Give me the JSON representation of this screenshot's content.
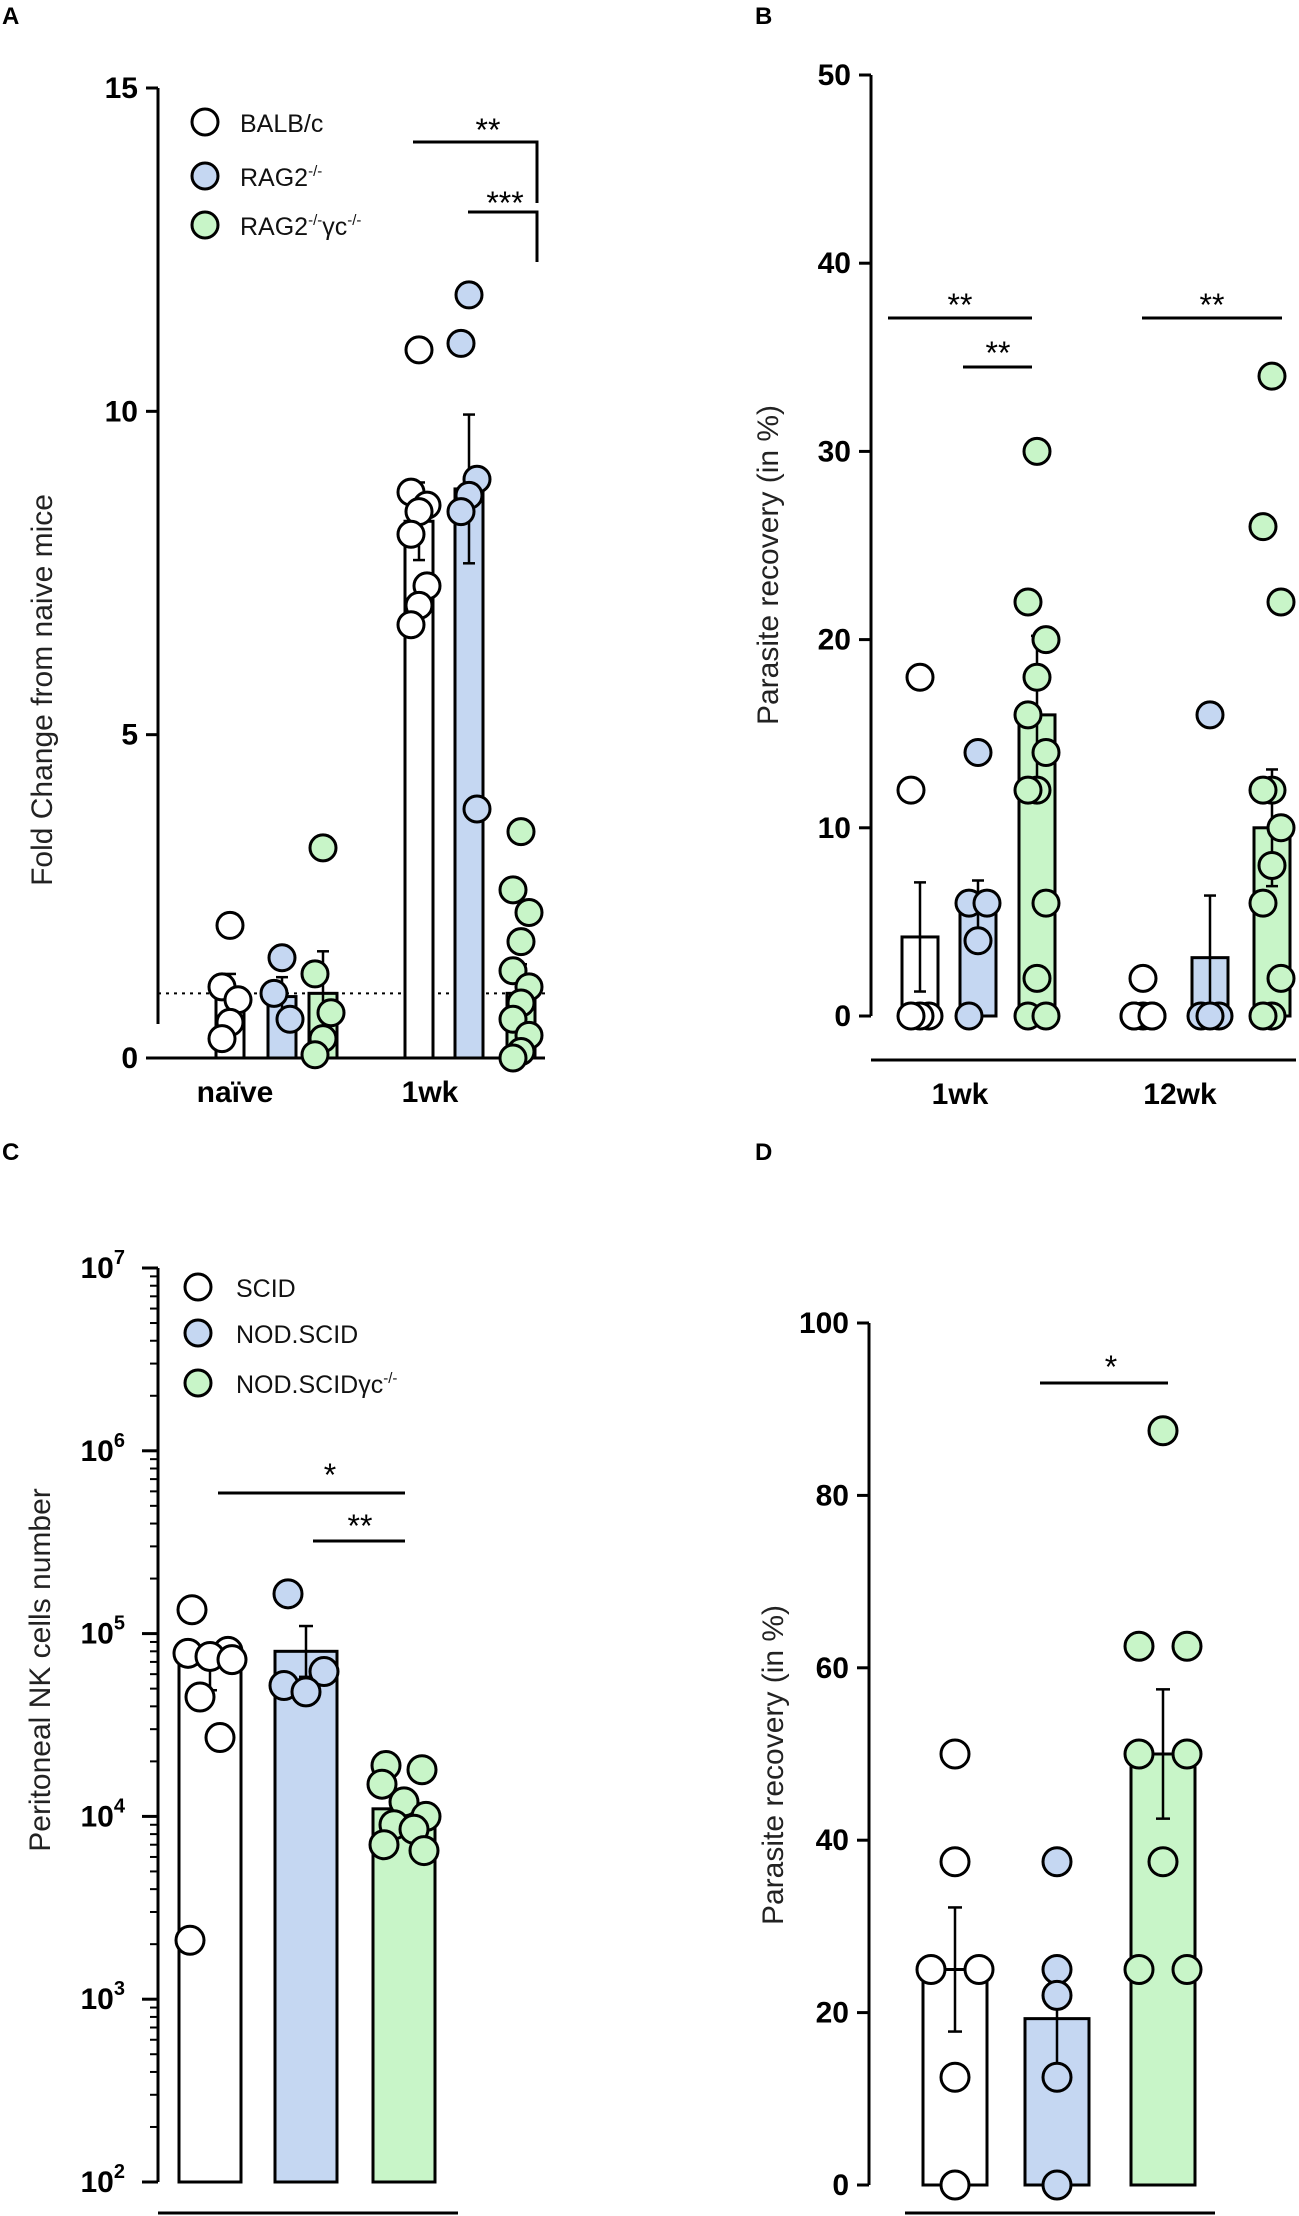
{
  "colors": {
    "BALB/c": "#ffffff",
    "RAG2": "#c5d7f2",
    "RAG2gc": "#c8f5c8",
    "SCID": "#ffffff",
    "NODSCID": "#c5d7f2",
    "NODSCIDgc": "#c8f5c8"
  },
  "chart_data": [
    {
      "panel": "A",
      "type": "bar",
      "ylabel": "Fold Change from naive mice",
      "ylim": [
        0,
        15
      ],
      "yticks": [
        "0",
        "5",
        "10",
        "15"
      ],
      "categories": [
        "naïve",
        "1wk"
      ],
      "legend": [
        {
          "name": "BALB/c",
          "sup": "",
          "name2": "",
          "sup2": ""
        },
        {
          "name": "RAG2",
          "sup": "-/-",
          "name2": "",
          "sup2": ""
        },
        {
          "name": "RAG2",
          "sup": "-/-",
          "name2": "γc",
          "sup2": "-/-"
        }
      ],
      "reference_line": 1,
      "series": [
        {
          "name": "BALB/c",
          "values": [
            1.0,
            8.3
          ],
          "err": [
            0.3,
            0.6
          ],
          "points": [
            [
              2.05,
              1.1,
              0.9,
              0.55,
              0.3
            ],
            [
              10.95,
              8.75,
              8.55,
              8.45,
              8.1,
              7.3,
              7.0,
              6.7
            ]
          ]
        },
        {
          "name": "RAG2-/-",
          "values": [
            0.95,
            8.8
          ],
          "err": [
            0.3,
            1.15
          ],
          "points": [
            [
              1.55,
              1.0,
              0.6
            ],
            [
              11.8,
              11.05,
              8.95,
              8.7,
              8.45,
              3.85
            ]
          ]
        },
        {
          "name": "RAG2-/-γc-/-",
          "values": [
            1.0,
            1.0
          ],
          "err": [
            0.65,
            0.45
          ],
          "points": [
            [
              3.25,
              1.3,
              0.7,
              0.3,
              0.05
            ],
            [
              3.5,
              2.6,
              2.25,
              1.8,
              1.35,
              1.1,
              0.85,
              0.6,
              0.35,
              0.1,
              0.0
            ]
          ]
        }
      ],
      "significance": [
        {
          "label": "**",
          "from": "BALB/c 1wk",
          "to": "RAG2-/-γc-/- 1wk"
        },
        {
          "label": "***",
          "from": "RAG2-/- 1wk",
          "to": "RAG2-/-γc-/- 1wk"
        }
      ]
    },
    {
      "panel": "B",
      "type": "bar",
      "ylabel": "Parasite recovery (in %)",
      "ylim": [
        0,
        50
      ],
      "yticks": [
        "0",
        "10",
        "20",
        "30",
        "40",
        "50"
      ],
      "categories": [
        "1wk",
        "12wk"
      ],
      "series": [
        {
          "name": "BALB/c",
          "values": [
            4.2,
            0.2
          ],
          "err": [
            2.9,
            0.2
          ],
          "points": [
            [
              18,
              12,
              0,
              0,
              0
            ],
            [
              2,
              0,
              0,
              0,
              0,
              0
            ]
          ]
        },
        {
          "name": "RAG2-/-",
          "values": [
            5.8,
            3.1
          ],
          "err": [
            1.4,
            3.3
          ],
          "points": [
            [
              14,
              6,
              6,
              4,
              0
            ],
            [
              16,
              0,
              0,
              0
            ]
          ]
        },
        {
          "name": "RAG2-/-γc-/-",
          "values": [
            16.0,
            10.0
          ],
          "err": [
            4.2,
            3.1
          ],
          "points": [
            [
              30,
              22,
              20,
              18,
              16,
              14,
              12,
              12,
              6,
              2,
              0,
              0
            ],
            [
              34,
              26,
              22,
              12,
              12,
              10,
              8,
              6,
              2,
              0,
              0
            ]
          ]
        }
      ],
      "significance": [
        {
          "label": "**",
          "from": "BALB/c 1wk",
          "to": "RAG2-/-γc-/- 1wk"
        },
        {
          "label": "**",
          "from": "RAG2-/- 1wk",
          "to": "RAG2-/-γc-/- 1wk"
        },
        {
          "label": "**",
          "from": "BALB/c 12wk",
          "to": "RAG2-/-γc-/- 12wk"
        }
      ]
    },
    {
      "panel": "C",
      "type": "bar",
      "yscale": "log",
      "ylabel": "Peritoneal NK cells number",
      "ylim": [
        100,
        10000000
      ],
      "yticks": [
        {
          "base": "10",
          "exp": "2"
        },
        {
          "base": "10",
          "exp": "3"
        },
        {
          "base": "10",
          "exp": "4"
        },
        {
          "base": "10",
          "exp": "5"
        },
        {
          "base": "10",
          "exp": "6"
        },
        {
          "base": "10",
          "exp": "7"
        }
      ],
      "legend": [
        {
          "name": "SCID",
          "sup": ""
        },
        {
          "name": "NOD.SCID",
          "sup": ""
        },
        {
          "name": "NOD.SCIDγc",
          "sup": "-/-"
        }
      ],
      "series": [
        {
          "name": "SCID",
          "value": 68000,
          "err_low": 49000,
          "err_high": 87000,
          "points": [
            135000,
            80000,
            78000,
            75000,
            72000,
            45000,
            27000,
            2100
          ]
        },
        {
          "name": "NOD.SCID",
          "value": 80000,
          "err_low": 58000,
          "err_high": 110000,
          "points": [
            165000,
            62000,
            52000,
            48000
          ]
        },
        {
          "name": "NOD.SCIDγc-/-",
          "value": 11000,
          "err_low": 9000,
          "err_high": 13500,
          "points": [
            19000,
            18000,
            15000,
            12000,
            10000,
            9000,
            8500,
            7000,
            6500
          ]
        }
      ],
      "significance": [
        {
          "label": "*",
          "from": "SCID",
          "to": "NOD.SCIDγc-/-"
        },
        {
          "label": "**",
          "from": "NOD.SCID",
          "to": "NOD.SCIDγc-/-"
        }
      ]
    },
    {
      "panel": "D",
      "type": "bar",
      "ylabel": "Parasite recovery (in %)",
      "ylim": [
        0,
        100
      ],
      "yticks": [
        "0",
        "20",
        "40",
        "60",
        "80",
        "100"
      ],
      "series": [
        {
          "name": "SCID",
          "value": 25,
          "err": 7.2,
          "points": [
            50,
            37.5,
            25,
            25,
            12.5,
            0
          ]
        },
        {
          "name": "NOD.SCID",
          "value": 19.3,
          "err": 6.5,
          "points": [
            37.5,
            25,
            22,
            12.5,
            0
          ]
        },
        {
          "name": "NOD.SCIDγc-/-",
          "value": 50,
          "err": 7.5,
          "points": [
            87.5,
            62.5,
            62.5,
            50,
            50,
            37.5,
            25,
            25
          ]
        }
      ],
      "significance": [
        {
          "label": "*",
          "from": "NOD.SCID",
          "to": "NOD.SCIDγc-/-"
        }
      ]
    }
  ]
}
